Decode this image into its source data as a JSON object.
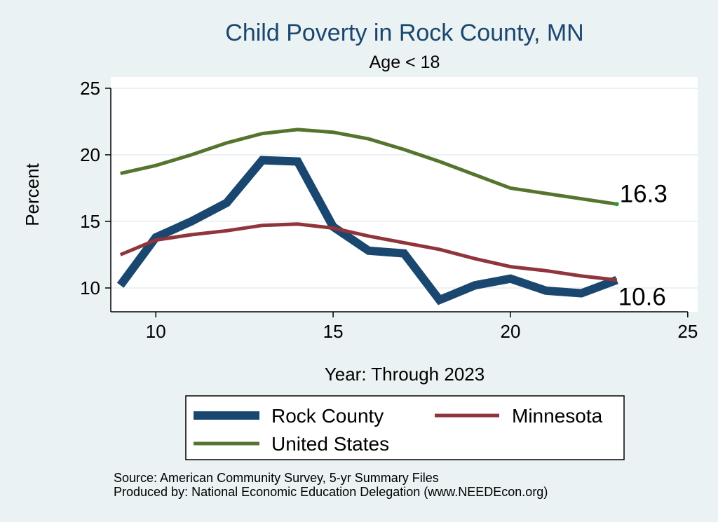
{
  "colors": {
    "background": "#eaf2f3",
    "plot_background": "#ffffff",
    "grid": "#eaf2f3",
    "title": "#1a476f"
  },
  "chart_data": {
    "type": "line",
    "title": "Child Poverty in Rock County, MN",
    "subtitle": "Age < 18",
    "xlabel": "Year: Through 2023",
    "ylabel": "Percent",
    "xlim": [
      8.73,
      25.28
    ],
    "ylim": [
      8.21,
      25.84
    ],
    "xticks": [
      10,
      15,
      20,
      25
    ],
    "xtick_labels": [
      "10",
      "15",
      "20",
      "25"
    ],
    "yticks": [
      10,
      15,
      20,
      25
    ],
    "ytick_labels": [
      "10",
      "15",
      "20",
      "25"
    ],
    "grid": true,
    "x": [
      9,
      10,
      11,
      12,
      13,
      14,
      15,
      16,
      17,
      18,
      19,
      20,
      21,
      22,
      23
    ],
    "series": [
      {
        "name": "Rock County",
        "color": "#1a476f",
        "values": [
          10.2,
          13.8,
          15.0,
          16.4,
          19.6,
          19.5,
          14.6,
          12.8,
          12.6,
          9.1,
          10.2,
          10.7,
          9.8,
          9.6,
          10.6
        ]
      },
      {
        "name": "Minnesota",
        "color": "#90353b",
        "values": [
          12.5,
          13.6,
          14.0,
          14.3,
          14.7,
          14.8,
          14.5,
          13.9,
          13.4,
          12.9,
          12.2,
          11.6,
          11.3,
          10.9,
          10.6
        ]
      },
      {
        "name": "United States",
        "color": "#55752f",
        "values": [
          18.6,
          19.2,
          20.0,
          20.9,
          21.6,
          21.9,
          21.7,
          21.2,
          20.4,
          19.5,
          18.5,
          17.5,
          17.1,
          16.7,
          16.3
        ]
      }
    ],
    "annotations": [
      {
        "text": "16.3",
        "x": 23,
        "y": 16.3,
        "series": "United States",
        "placement": "above-right",
        "marker_color": "#2e9a2e"
      },
      {
        "text": "10.6",
        "x": 23,
        "y": 10.6,
        "series": "Minnesota",
        "placement": "below-right"
      }
    ],
    "legend": {
      "position": "bottom",
      "columns": 2
    }
  },
  "notes": {
    "source": "Source: American Community Survey, 5-yr Summary Files",
    "produced_by": "Produced by: National Economic Education Delegation (www.NEEDEcon.org)"
  }
}
